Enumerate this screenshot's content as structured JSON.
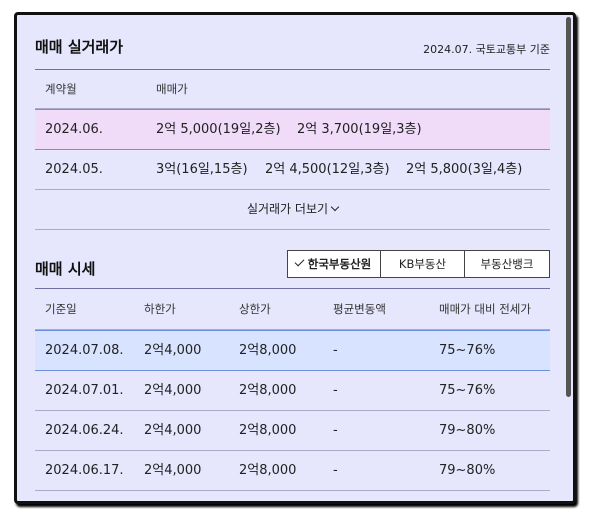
{
  "trade": {
    "title": "매매 실거래가",
    "note": "2024.07. 국토교통부 기준",
    "columns": [
      "계약월",
      "매매가"
    ],
    "rows": [
      {
        "month": "2024.06.",
        "deals": [
          "2억 5,000(19일,2층)",
          "2억 3,700(19일,3층)"
        ]
      },
      {
        "month": "2024.05.",
        "deals": [
          "3억(16일,15층)",
          "2억 4,500(12일,3층)",
          "2억 5,800(3일,4층)"
        ]
      }
    ],
    "more_label": "실거래가 더보기"
  },
  "market": {
    "title": "매매 시세",
    "tabs": [
      "한국부동산원",
      "KB부동산",
      "부동산뱅크"
    ],
    "selected_tab": "한국부동산원",
    "columns": [
      "기준일",
      "하한가",
      "상한가",
      "평균변동액",
      "매매가 대비 전세가"
    ],
    "rows": [
      {
        "date": "2024.07.08.",
        "low": "2억4,000",
        "high": "2억8,000",
        "change": "-",
        "ratio": "75~76%"
      },
      {
        "date": "2024.07.01.",
        "low": "2억4,000",
        "high": "2억8,000",
        "change": "-",
        "ratio": "75~76%"
      },
      {
        "date": "2024.06.24.",
        "low": "2억4,000",
        "high": "2억8,000",
        "change": "-",
        "ratio": "79~80%"
      },
      {
        "date": "2024.06.17.",
        "low": "2억4,000",
        "high": "2억8,000",
        "change": "-",
        "ratio": "79~80%"
      }
    ]
  }
}
